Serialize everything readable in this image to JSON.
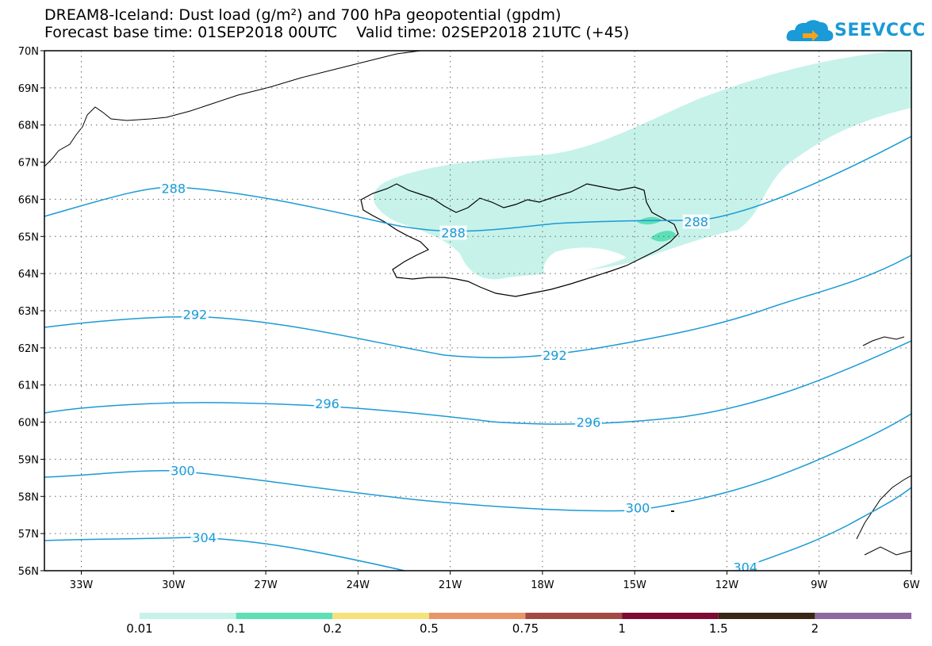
{
  "title": {
    "line1": "DREAM8-Iceland: Dust load (g/m²) and 700 hPa geopotential (gpdm)",
    "line2": "Forecast base time: 01SEP2018 00UTC    Valid time: 02SEP2018 21UTC (+45)"
  },
  "logo": {
    "text": "SEEVCCC",
    "icon": "cloud-logo-icon",
    "color": "#1a9ad6"
  },
  "map": {
    "lon_range": [
      -34.2,
      -6
    ],
    "lat_range": [
      56,
      70
    ],
    "lon_ticks": [
      "33W",
      "30W",
      "27W",
      "24W",
      "21W",
      "18W",
      "15W",
      "12W",
      "9W",
      "6W"
    ],
    "lon_values": [
      -33,
      -30,
      -27,
      -24,
      -21,
      -18,
      -15,
      -12,
      -9,
      -6
    ],
    "lat_ticks": [
      "70N",
      "69N",
      "68N",
      "67N",
      "66N",
      "65N",
      "64N",
      "63N",
      "62N",
      "61N",
      "60N",
      "59N",
      "58N",
      "57N",
      "56N"
    ],
    "lat_values": [
      70,
      69,
      68,
      67,
      66,
      65,
      64,
      63,
      62,
      61,
      60,
      59,
      58,
      57,
      56
    ],
    "grid": "dotted",
    "contour_color": "#1a9ad6",
    "contours": [
      {
        "label": "288",
        "label_positions": [
          [
            -30.0,
            66.3
          ],
          [
            -20.9,
            65.1
          ],
          [
            -13.0,
            65.4
          ]
        ]
      },
      {
        "label": "292",
        "label_positions": [
          [
            -29.3,
            62.9
          ],
          [
            -17.6,
            61.8
          ]
        ]
      },
      {
        "label": "296",
        "label_positions": [
          [
            -25.0,
            60.5
          ],
          [
            -16.5,
            60.0
          ]
        ]
      },
      {
        "label": "300",
        "label_positions": [
          [
            -29.7,
            58.7
          ],
          [
            -14.9,
            57.7
          ]
        ]
      },
      {
        "label": "304",
        "label_positions": [
          [
            -29.0,
            56.9
          ],
          [
            -11.4,
            56.1
          ]
        ]
      }
    ],
    "dust_color_low": "#c6f2ea",
    "dust_color_mid": "#5de0b5"
  },
  "colorbar": {
    "colors": [
      "#c6f2ea",
      "#5de0b5",
      "#f6e27a",
      "#e8956a",
      "#a44a45",
      "#7d0b34",
      "#3a2614",
      "#8c6aa0"
    ],
    "labels": [
      "0.01",
      "0.1",
      "0.2",
      "0.5",
      "0.75",
      "1",
      "1.5",
      "2"
    ]
  }
}
